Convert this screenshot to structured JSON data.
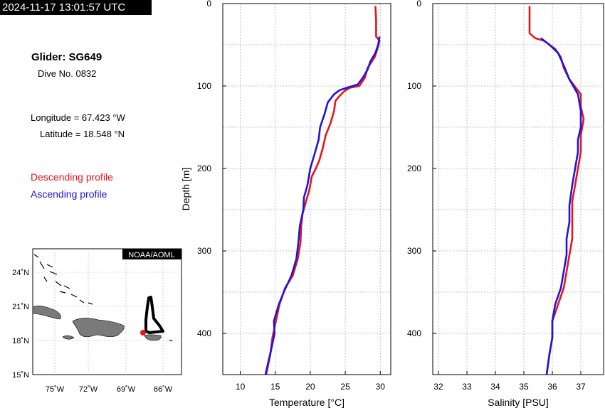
{
  "timestamp": "2024-11-17 13:01:57 UTC",
  "glider_label": "Glider: SG649",
  "dive_label": "Dive No. 0832",
  "longitude_label": "Longitude = 67.423 °W",
  "latitude_label": "Latitude = 18.548 °N",
  "legend": {
    "descending": "Descending profile",
    "ascending": "Ascending profile"
  },
  "colors": {
    "descending": "#e8141e",
    "ascending": "#1e14dc",
    "grid": "#b4b4b4",
    "land": "#7a7a7a"
  },
  "map": {
    "credit": "NOAA/AOML",
    "lat_labels": [
      "24˚N",
      "21˚N",
      "18˚N",
      "15˚N"
    ],
    "lon_labels": [
      "75˚W",
      "72˚W",
      "69˚W",
      "66˚W"
    ],
    "track_marker": "red position dot"
  },
  "chart_data": [
    {
      "type": "line",
      "xlabel": "Temperature [°C]",
      "ylabel": "Depth [m]",
      "xlim": [
        7.5,
        31.5
      ],
      "ylim": [
        450,
        0
      ],
      "x_ticks": [
        10,
        15,
        20,
        25,
        30
      ],
      "y_ticks": [
        0,
        100,
        200,
        300,
        400
      ],
      "grid": true,
      "series": [
        {
          "color": "red",
          "points": [
            [
              29.3,
              3
            ],
            [
              29.4,
              20
            ],
            [
              29.4,
              40
            ],
            [
              29.9,
              45
            ],
            [
              29.6,
              55
            ],
            [
              29.2,
              65
            ],
            [
              28.2,
              78
            ],
            [
              27.8,
              90
            ],
            [
              27.0,
              100
            ],
            [
              25.7,
              102
            ],
            [
              24.9,
              106
            ],
            [
              24.2,
              112
            ],
            [
              23.6,
              118
            ],
            [
              23.4,
              130
            ],
            [
              22.9,
              145
            ],
            [
              22.2,
              160
            ],
            [
              21.8,
              175
            ],
            [
              21.3,
              190
            ],
            [
              20.8,
              200
            ],
            [
              20.2,
              210
            ],
            [
              19.9,
              225
            ],
            [
              19.4,
              240
            ],
            [
              18.9,
              255
            ],
            [
              18.7,
              270
            ],
            [
              18.6,
              290
            ],
            [
              18.2,
              310
            ],
            [
              17.5,
              330
            ],
            [
              16.4,
              345
            ],
            [
              15.6,
              365
            ],
            [
              15.1,
              385
            ],
            [
              14.6,
              405
            ],
            [
              14.3,
              425
            ],
            [
              13.7,
              450
            ]
          ]
        },
        {
          "color": "blue",
          "points": [
            [
              29.9,
              40
            ],
            [
              29.7,
              50
            ],
            [
              29.3,
              60
            ],
            [
              28.6,
              70
            ],
            [
              28.2,
              80
            ],
            [
              27.5,
              90
            ],
            [
              26.8,
              98
            ],
            [
              25.3,
              102
            ],
            [
              24.2,
              105
            ],
            [
              23.4,
              110
            ],
            [
              22.5,
              120
            ],
            [
              22.0,
              135
            ],
            [
              21.4,
              150
            ],
            [
              21.2,
              165
            ],
            [
              20.7,
              180
            ],
            [
              20.0,
              200
            ],
            [
              19.6,
              220
            ],
            [
              19.1,
              235
            ],
            [
              19.0,
              250
            ],
            [
              18.5,
              270
            ],
            [
              18.3,
              290
            ],
            [
              18.0,
              310
            ],
            [
              17.3,
              330
            ],
            [
              16.2,
              350
            ],
            [
              15.5,
              365
            ],
            [
              14.8,
              385
            ],
            [
              14.9,
              400
            ],
            [
              14.4,
              420
            ],
            [
              14.0,
              435
            ],
            [
              13.6,
              450
            ]
          ]
        }
      ]
    },
    {
      "type": "line",
      "xlabel": "Salinity [PSU]",
      "ylabel": "",
      "xlim": [
        31.8,
        37.8
      ],
      "ylim": [
        450,
        0
      ],
      "x_ticks": [
        32,
        33,
        34,
        35,
        36,
        37
      ],
      "y_ticks": [
        0,
        100,
        200,
        300,
        400
      ],
      "grid": true,
      "series": [
        {
          "color": "red",
          "points": [
            [
              35.2,
              3
            ],
            [
              35.2,
              20
            ],
            [
              35.2,
              36
            ],
            [
              35.4,
              42
            ],
            [
              35.7,
              45
            ],
            [
              36.1,
              55
            ],
            [
              36.3,
              65
            ],
            [
              36.4,
              78
            ],
            [
              36.6,
              92
            ],
            [
              37.0,
              110
            ],
            [
              37.0,
              125
            ],
            [
              37.1,
              140
            ],
            [
              37.0,
              160
            ],
            [
              37.0,
              180
            ],
            [
              36.9,
              200
            ],
            [
              36.8,
              220
            ],
            [
              36.7,
              240
            ],
            [
              36.7,
              260
            ],
            [
              36.7,
              285
            ],
            [
              36.6,
              305
            ],
            [
              36.5,
              325
            ],
            [
              36.4,
              345
            ],
            [
              36.2,
              365
            ],
            [
              36.0,
              385
            ],
            [
              36.0,
              405
            ],
            [
              35.9,
              425
            ],
            [
              35.8,
              450
            ]
          ]
        },
        {
          "color": "blue",
          "points": [
            [
              35.6,
              42
            ],
            [
              35.9,
              50
            ],
            [
              36.2,
              60
            ],
            [
              36.4,
              75
            ],
            [
              36.6,
              92
            ],
            [
              36.9,
              110
            ],
            [
              37.0,
              130
            ],
            [
              37.0,
              150
            ],
            [
              36.9,
              165
            ],
            [
              36.9,
              180
            ],
            [
              36.8,
              200
            ],
            [
              36.7,
              220
            ],
            [
              36.6,
              245
            ],
            [
              36.6,
              265
            ],
            [
              36.5,
              285
            ],
            [
              36.5,
              305
            ],
            [
              36.4,
              325
            ],
            [
              36.3,
              345
            ],
            [
              36.1,
              365
            ],
            [
              36.0,
              385
            ],
            [
              36.0,
              405
            ],
            [
              35.9,
              425
            ],
            [
              35.8,
              450
            ]
          ]
        }
      ]
    }
  ]
}
